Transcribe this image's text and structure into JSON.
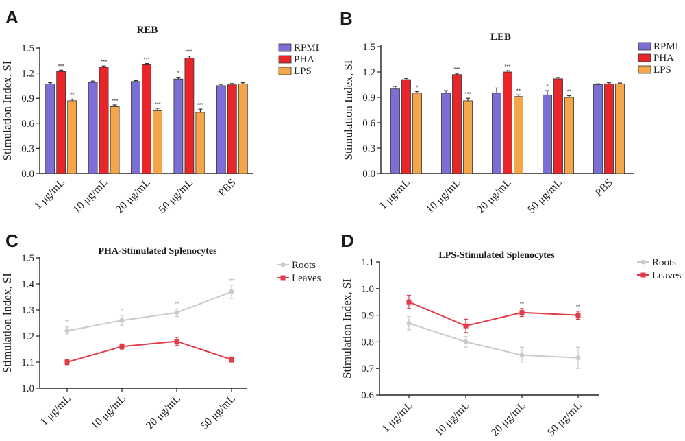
{
  "panels": {
    "A": "A",
    "B": "B",
    "C": "C",
    "D": "D"
  },
  "chart_data": [
    {
      "panel": "A",
      "type": "bar",
      "title": "REB",
      "ylabel": "Stimulation Index, SI",
      "ylim": [
        0,
        1.5
      ],
      "yticks": [
        "0.0",
        "0.3",
        "0.6",
        "0.9",
        "1.2",
        "1.5"
      ],
      "categories": [
        "1 μg/mL",
        "10 μg/mL",
        "20 μg/mL",
        "50 μg/mL",
        "PBS"
      ],
      "legend_position": "top-right",
      "series": [
        {
          "name": "RPMI",
          "color": "#7b6fd6",
          "values": [
            1.07,
            1.09,
            1.1,
            1.13,
            1.05
          ],
          "err": [
            0.015,
            0.015,
            0.01,
            0.02,
            0.015
          ],
          "sig": [
            "",
            "",
            "",
            "*",
            ""
          ]
        },
        {
          "name": "PHA",
          "color": "#e8262a",
          "values": [
            1.22,
            1.27,
            1.3,
            1.38,
            1.06
          ],
          "err": [
            0.015,
            0.015,
            0.015,
            0.025,
            0.015
          ],
          "sig": [
            "***",
            "***",
            "***",
            "***",
            ""
          ]
        },
        {
          "name": "LPS",
          "color": "#f5a54a",
          "values": [
            0.87,
            0.8,
            0.75,
            0.73,
            1.07
          ],
          "err": [
            0.02,
            0.02,
            0.03,
            0.04,
            0.015
          ],
          "sig": [
            "**",
            "***",
            "***",
            "***",
            ""
          ]
        }
      ]
    },
    {
      "panel": "B",
      "type": "bar",
      "title": "LEB",
      "ylabel": "Stimulation Index, SI",
      "ylim": [
        0,
        1.5
      ],
      "yticks": [
        "0.0",
        "0.3",
        "0.6",
        "0.9",
        "1.2",
        "1.5"
      ],
      "categories": [
        "1 μg/mL",
        "10 μg/mL",
        "20 μg/mL",
        "50 μg/mL",
        "PBS"
      ],
      "legend_position": "top-right",
      "series": [
        {
          "name": "RPMI",
          "color": "#7b6fd6",
          "values": [
            1.0,
            0.95,
            0.95,
            0.93,
            1.05
          ],
          "err": [
            0.03,
            0.03,
            0.06,
            0.05,
            0.01
          ],
          "sig": [
            "",
            "",
            "",
            "*",
            ""
          ]
        },
        {
          "name": "PHA",
          "color": "#e8262a",
          "values": [
            1.11,
            1.17,
            1.2,
            1.12,
            1.06
          ],
          "err": [
            0.015,
            0.015,
            0.015,
            0.015,
            0.015
          ],
          "sig": [
            "",
            "***",
            "***",
            "",
            ""
          ]
        },
        {
          "name": "LPS",
          "color": "#f5a54a",
          "values": [
            0.95,
            0.86,
            0.91,
            0.9,
            1.06
          ],
          "err": [
            0.02,
            0.03,
            0.02,
            0.02,
            0.01
          ],
          "sig": [
            "*",
            "***",
            "**",
            "**",
            ""
          ]
        }
      ]
    },
    {
      "panel": "C",
      "type": "line",
      "title": "PHA-Stimulated Splenocytes",
      "ylabel": "Stimulation Index, SI",
      "ylim": [
        1.0,
        1.5
      ],
      "yticks": [
        "1.0",
        "1.1",
        "1.2",
        "1.3",
        "1.4",
        "1.5"
      ],
      "categories": [
        "1 μg/mL",
        "10 μg/mL",
        "20 μg/mL",
        "50 μg/mL"
      ],
      "legend_position": "top-right",
      "series": [
        {
          "name": "Roots",
          "color": "#c8ccc8",
          "values": [
            1.22,
            1.26,
            1.29,
            1.37
          ],
          "err": [
            0.015,
            0.02,
            0.015,
            0.025
          ],
          "sig": [
            "**",
            "*",
            "**",
            "***"
          ]
        },
        {
          "name": "Leaves",
          "color": "#e23a48",
          "values": [
            1.1,
            1.16,
            1.18,
            1.11
          ],
          "err": [
            0.01,
            0.01,
            0.015,
            0.01
          ],
          "sig": [
            "",
            "",
            "",
            ""
          ]
        }
      ]
    },
    {
      "panel": "D",
      "type": "line",
      "title": "LPS-Stimulated Splenocytes",
      "ylabel": "Stimulation Index, SI",
      "ylim": [
        0.6,
        1.1
      ],
      "yticks": [
        "0.6",
        "0.7",
        "0.8",
        "0.9",
        "1.0",
        "1.1"
      ],
      "categories": [
        "1 μg/mL",
        "10 μg/mL",
        "20 μg/mL",
        "50 μg/mL"
      ],
      "legend_position": "top-right",
      "series": [
        {
          "name": "Roots",
          "color": "#c8ccc8",
          "values": [
            0.87,
            0.8,
            0.75,
            0.74
          ],
          "err": [
            0.025,
            0.02,
            0.03,
            0.04
          ],
          "sig": [
            "",
            "",
            "",
            ""
          ]
        },
        {
          "name": "Leaves",
          "color": "#e23a48",
          "values": [
            0.95,
            0.86,
            0.91,
            0.9
          ],
          "err": [
            0.025,
            0.025,
            0.015,
            0.015
          ],
          "sig": [
            "",
            "",
            "**",
            "**"
          ]
        }
      ]
    }
  ]
}
